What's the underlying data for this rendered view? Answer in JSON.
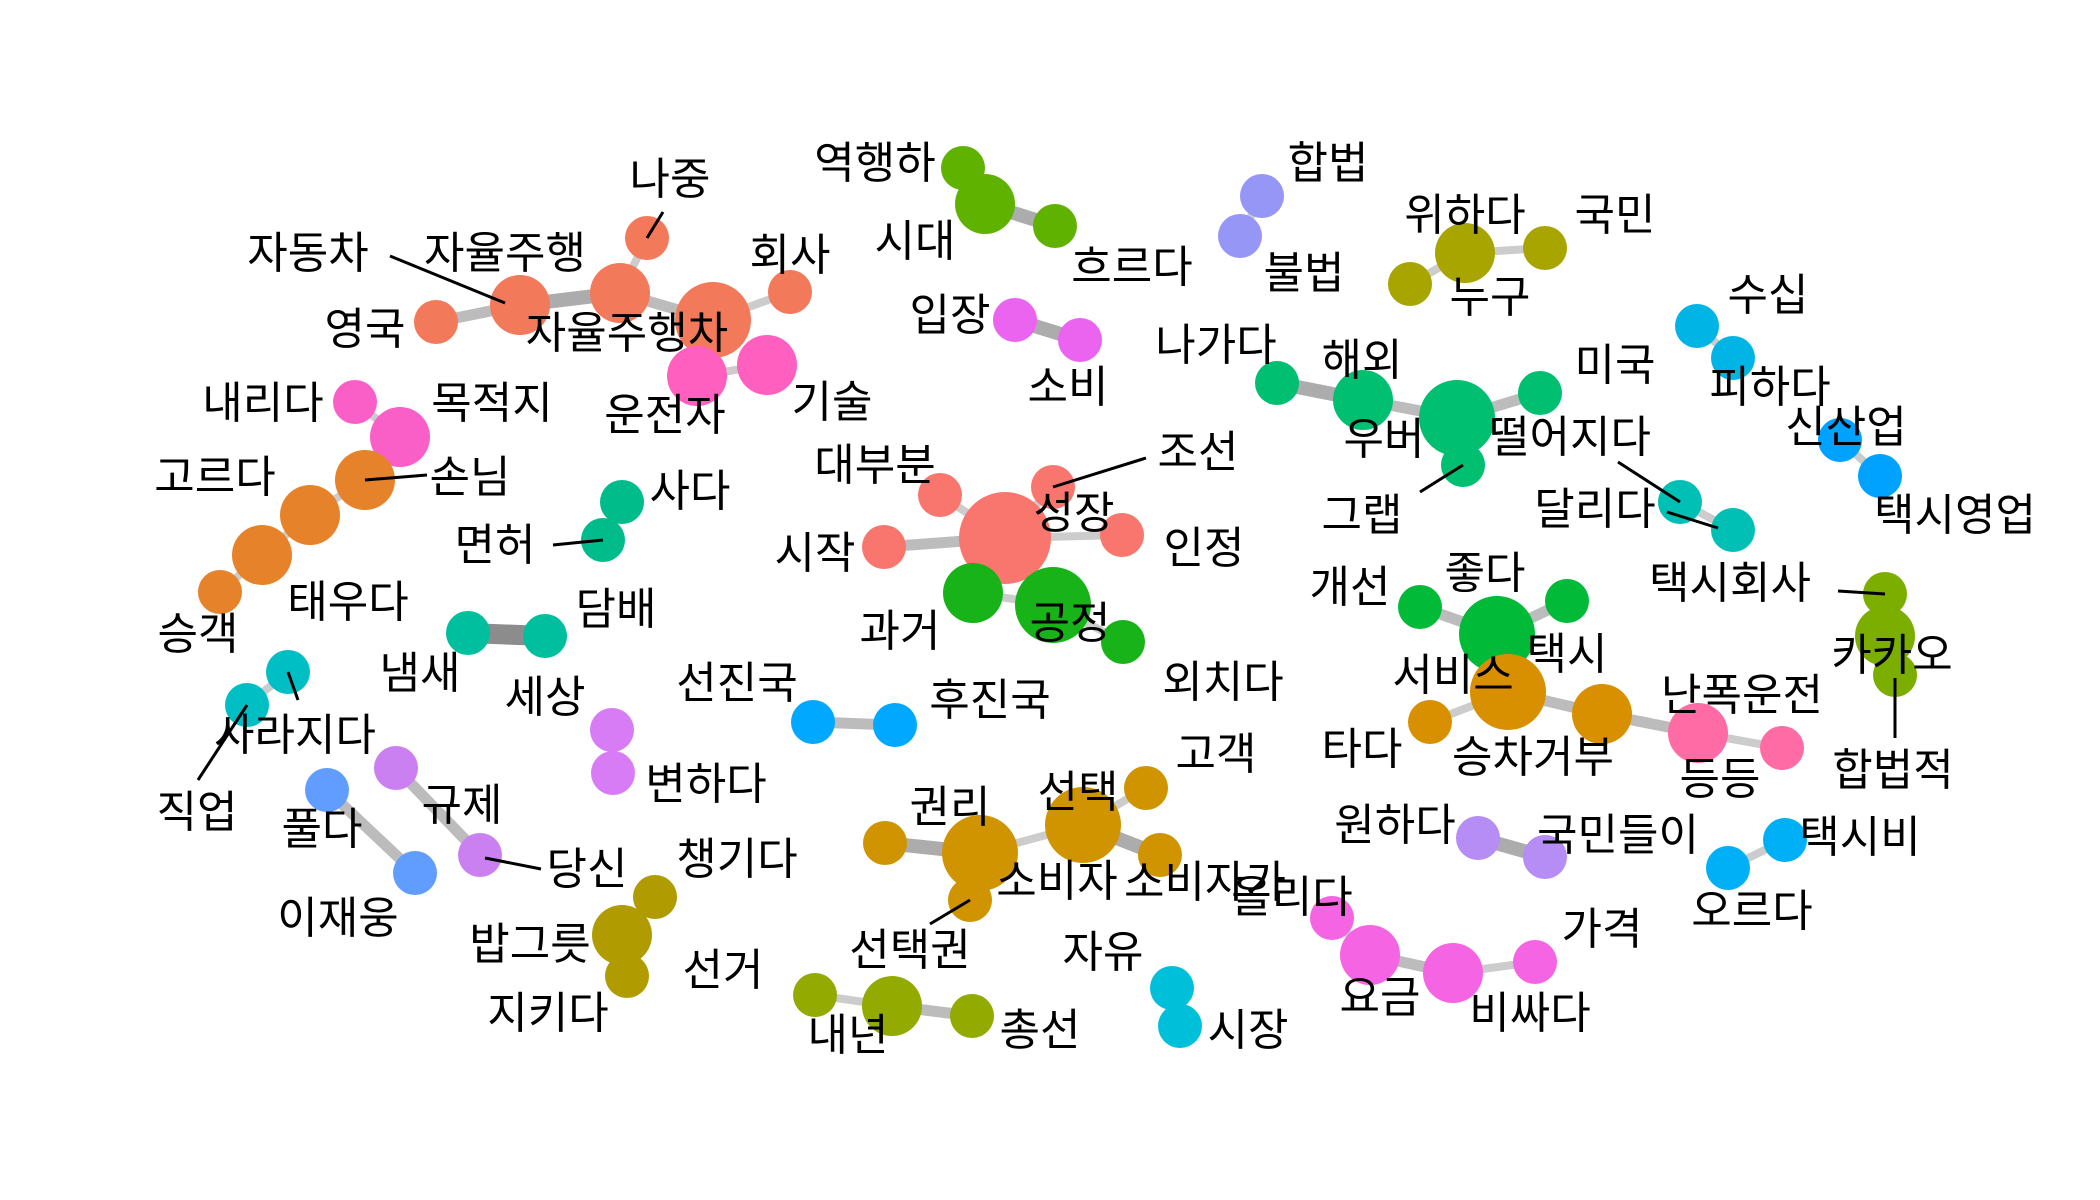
{
  "colors": {
    "edge": "#bdbdbd",
    "label": "#000000",
    "leader": "#000000",
    "background": "#ffffff"
  },
  "clusters": [
    {
      "id": "c_ai",
      "color": "#F2795A",
      "nodes": [
        "나중",
        "자율주행",
        "자율주행차",
        "회사",
        "자동차",
        "영국"
      ]
    },
    {
      "id": "c_yh",
      "color": "#5FB300",
      "nodes": [
        "역행하",
        "시대",
        "흐르다"
      ]
    },
    {
      "id": "c_law",
      "color": "#9696F7",
      "nodes": [
        "합법",
        "불법"
      ]
    },
    {
      "id": "c_nat",
      "color": "#A8A400",
      "nodes": [
        "위하다",
        "국민",
        "누구"
      ]
    },
    {
      "id": "c_wc",
      "color": "#FF5FBE",
      "nodes": [
        "운전자",
        "기술"
      ]
    },
    {
      "id": "c_ip",
      "color": "#EB64EF",
      "nodes": [
        "입장",
        "소비"
      ]
    },
    {
      "id": "c_sus",
      "color": "#00B4E6",
      "nodes": [
        "수십",
        "피하다"
      ]
    },
    {
      "id": "c_new",
      "color": "#00A2FF",
      "nodes": [
        "신산업",
        "택시영업"
      ]
    },
    {
      "id": "c_ub",
      "color": "#00BF70",
      "nodes": [
        "나가다",
        "해외",
        "우버",
        "미국",
        "그랩"
      ]
    },
    {
      "id": "c_dest",
      "color": "#FA5FC8",
      "nodes": [
        "내리다",
        "목적지"
      ]
    },
    {
      "id": "c_cust",
      "color": "#E6822A",
      "nodes": [
        "손님",
        "고르다",
        "태우다",
        "승객"
      ]
    },
    {
      "id": "c_lic",
      "color": "#00BC8A",
      "nodes": [
        "사다",
        "면허"
      ]
    },
    {
      "id": "c_grow",
      "color": "#F8766D",
      "nodes": [
        "대부분",
        "조선",
        "성장",
        "시작",
        "인정"
      ]
    },
    {
      "id": "c_fair",
      "color": "#18B318",
      "nodes": [
        "과거",
        "공정",
        "외치다"
      ]
    },
    {
      "id": "c_fall",
      "color": "#00BFB4",
      "nodes": [
        "떨어지다",
        "달리다"
      ]
    },
    {
      "id": "c_smoke",
      "color": "#00BF9E",
      "nodes": [
        "냄새",
        "담배"
      ]
    },
    {
      "id": "c_good",
      "color": "#00BA38",
      "nodes": [
        "개선",
        "좋다",
        "택시"
      ]
    },
    {
      "id": "c_kakao",
      "color": "#7CAE00",
      "nodes": [
        "택시회사",
        "카카오",
        "합법적"
      ]
    },
    {
      "id": "c_job",
      "color": "#00BFC4",
      "nodes": [
        "사라지다",
        "직업"
      ]
    },
    {
      "id": "c_world",
      "color": "#D77CF5",
      "nodes": [
        "세상",
        "변하다"
      ]
    },
    {
      "id": "c_dev",
      "color": "#00A9FF",
      "nodes": [
        "선진국",
        "후진국"
      ]
    },
    {
      "id": "c_svc",
      "color": "#D89000",
      "nodes": [
        "서비스",
        "승차거부",
        "타다"
      ]
    },
    {
      "id": "c_reck",
      "color": "#FF6BA4",
      "nodes": [
        "난폭운전",
        "등등"
      ]
    },
    {
      "id": "c_free",
      "color": "#CB80F2",
      "nodes": [
        "풀다",
        "규제"
      ]
    },
    {
      "id": "c_you",
      "color": "#619CFF",
      "nodes": [
        "당신",
        "이재웅"
      ]
    },
    {
      "id": "c_choice",
      "color": "#CF9400",
      "nodes": [
        "고객",
        "선택",
        "권리",
        "소비자",
        "소비자가",
        "선택권"
      ]
    },
    {
      "id": "c_pub",
      "color": "#B09B00",
      "nodes": [
        "챙기다",
        "밥그릇",
        "지키다"
      ]
    },
    {
      "id": "c_want",
      "color": "#B68CF5",
      "nodes": [
        "원하다",
        "국민들이"
      ]
    },
    {
      "id": "c_fare",
      "color": "#00B0F6",
      "nodes": [
        "택시비",
        "오르다"
      ]
    },
    {
      "id": "c_price",
      "color": "#F564E3",
      "nodes": [
        "올리다",
        "요금",
        "비싸다",
        "가격"
      ]
    },
    {
      "id": "c_mkt",
      "color": "#00C0D9",
      "nodes": [
        "자유",
        "시장"
      ]
    },
    {
      "id": "c_elec",
      "color": "#93AA00",
      "nodes": [
        "선거",
        "내년",
        "총선"
      ]
    }
  ],
  "nodes": [
    {
      "label": "나중",
      "size": 1
    },
    {
      "label": "자율주행",
      "size": 2
    },
    {
      "label": "자율주행차",
      "size": 3
    },
    {
      "label": "회사",
      "size": 1
    },
    {
      "label": "자동차",
      "size": 2
    },
    {
      "label": "영국",
      "size": 1
    },
    {
      "label": "역행하",
      "size": 1
    },
    {
      "label": "시대",
      "size": 2
    },
    {
      "label": "흐르다",
      "size": 1
    },
    {
      "label": "합법",
      "size": 1
    },
    {
      "label": "불법",
      "size": 1
    },
    {
      "label": "위하다",
      "size": 2
    },
    {
      "label": "국민",
      "size": 1
    },
    {
      "label": "누구",
      "size": 1
    },
    {
      "label": "운전자",
      "size": 2
    },
    {
      "label": "기술",
      "size": 2
    },
    {
      "label": "입장",
      "size": 1
    },
    {
      "label": "소비",
      "size": 1
    },
    {
      "label": "수십",
      "size": 1
    },
    {
      "label": "피하다",
      "size": 1
    },
    {
      "label": "신산업",
      "size": 1
    },
    {
      "label": "택시영업",
      "size": 1
    },
    {
      "label": "나가다",
      "size": 1
    },
    {
      "label": "해외",
      "size": 2
    },
    {
      "label": "우버",
      "size": 3
    },
    {
      "label": "미국",
      "size": 1
    },
    {
      "label": "그랩",
      "size": 1
    },
    {
      "label": "내리다",
      "size": 1
    },
    {
      "label": "목적지",
      "size": 2
    },
    {
      "label": "손님",
      "size": 2
    },
    {
      "label": "고르다",
      "size": 2
    },
    {
      "label": "태우다",
      "size": 2
    },
    {
      "label": "승객",
      "size": 1
    },
    {
      "label": "사다",
      "size": 1
    },
    {
      "label": "면허",
      "size": 1
    },
    {
      "label": "대부분",
      "size": 1
    },
    {
      "label": "조선",
      "size": 1
    },
    {
      "label": "성장",
      "size": 4
    },
    {
      "label": "시작",
      "size": 1
    },
    {
      "label": "인정",
      "size": 1
    },
    {
      "label": "과거",
      "size": 2
    },
    {
      "label": "공정",
      "size": 3
    },
    {
      "label": "외치다",
      "size": 1
    },
    {
      "label": "떨어지다",
      "size": 1
    },
    {
      "label": "달리다",
      "size": 1
    },
    {
      "label": "냄새",
      "size": 1
    },
    {
      "label": "담배",
      "size": 1
    },
    {
      "label": "개선",
      "size": 1
    },
    {
      "label": "좋다",
      "size": 3
    },
    {
      "label": "택시",
      "size": 1
    },
    {
      "label": "택시회사",
      "size": 1
    },
    {
      "label": "카카오",
      "size": 2
    },
    {
      "label": "합법적",
      "size": 1
    },
    {
      "label": "사라지다",
      "size": 1
    },
    {
      "label": "직업",
      "size": 1
    },
    {
      "label": "세상",
      "size": 1
    },
    {
      "label": "변하다",
      "size": 1
    },
    {
      "label": "선진국",
      "size": 1
    },
    {
      "label": "후진국",
      "size": 1
    },
    {
      "label": "서비스",
      "size": 3
    },
    {
      "label": "승차거부",
      "size": 2
    },
    {
      "label": "타다",
      "size": 1
    },
    {
      "label": "난폭운전",
      "size": 2
    },
    {
      "label": "등등",
      "size": 1
    },
    {
      "label": "풀다",
      "size": 1
    },
    {
      "label": "규제",
      "size": 1
    },
    {
      "label": "당신",
      "size": 1
    },
    {
      "label": "이재웅",
      "size": 1
    },
    {
      "label": "고객",
      "size": 1
    },
    {
      "label": "선택",
      "size": 3
    },
    {
      "label": "권리",
      "size": 1
    },
    {
      "label": "소비자",
      "size": 3
    },
    {
      "label": "소비자가",
      "size": 1
    },
    {
      "label": "선택권",
      "size": 1
    },
    {
      "label": "챙기다",
      "size": 1
    },
    {
      "label": "밥그릇",
      "size": 2
    },
    {
      "label": "지키다",
      "size": 1
    },
    {
      "label": "원하다",
      "size": 1
    },
    {
      "label": "국민들이",
      "size": 1
    },
    {
      "label": "택시비",
      "size": 1
    },
    {
      "label": "오르다",
      "size": 1
    },
    {
      "label": "올리다",
      "size": 1
    },
    {
      "label": "요금",
      "size": 2
    },
    {
      "label": "비싸다",
      "size": 2
    },
    {
      "label": "가격",
      "size": 1
    },
    {
      "label": "자유",
      "size": 1
    },
    {
      "label": "시장",
      "size": 1
    },
    {
      "label": "선거",
      "size": 1
    },
    {
      "label": "내년",
      "size": 2
    },
    {
      "label": "총선",
      "size": 1
    }
  ],
  "edges": [
    {
      "source": "나중",
      "target": "자율주행",
      "weight": 1
    },
    {
      "source": "자율주행",
      "target": "자율주행차",
      "weight": 2
    },
    {
      "source": "자율주행차",
      "target": "회사",
      "weight": 1
    },
    {
      "source": "자율주행",
      "target": "자동차",
      "weight": 3
    },
    {
      "source": "자동차",
      "target": "영국",
      "weight": 2
    },
    {
      "source": "역행하",
      "target": "시대",
      "weight": 2
    },
    {
      "source": "시대",
      "target": "흐르다",
      "weight": 3
    },
    {
      "source": "합법",
      "target": "불법",
      "weight": 1
    },
    {
      "source": "위하다",
      "target": "국민",
      "weight": 1
    },
    {
      "source": "위하다",
      "target": "누구",
      "weight": 1
    },
    {
      "source": "운전자",
      "target": "기술",
      "weight": 1
    },
    {
      "source": "입장",
      "target": "소비",
      "weight": 3
    },
    {
      "source": "수십",
      "target": "피하다",
      "weight": 1
    },
    {
      "source": "신산업",
      "target": "택시영업",
      "weight": 1
    },
    {
      "source": "나가다",
      "target": "해외",
      "weight": 3
    },
    {
      "source": "해외",
      "target": "우버",
      "weight": 2
    },
    {
      "source": "우버",
      "target": "미국",
      "weight": 2
    },
    {
      "source": "우버",
      "target": "그랩",
      "weight": 1
    },
    {
      "source": "내리다",
      "target": "목적지",
      "weight": 1
    },
    {
      "source": "손님",
      "target": "고르다",
      "weight": 1
    },
    {
      "source": "고르다",
      "target": "태우다",
      "weight": 1
    },
    {
      "source": "태우다",
      "target": "승객",
      "weight": 1
    },
    {
      "source": "사다",
      "target": "면허",
      "weight": 1
    },
    {
      "source": "대부분",
      "target": "성장",
      "weight": 1
    },
    {
      "source": "조선",
      "target": "성장",
      "weight": 1
    },
    {
      "source": "시작",
      "target": "성장",
      "weight": 2
    },
    {
      "source": "성장",
      "target": "인정",
      "weight": 1
    },
    {
      "source": "성장",
      "target": "과거",
      "weight": 2
    },
    {
      "source": "성장",
      "target": "공정",
      "weight": 2
    },
    {
      "source": "과거",
      "target": "공정",
      "weight": 1
    },
    {
      "source": "공정",
      "target": "외치다",
      "weight": 1
    },
    {
      "source": "떨어지다",
      "target": "달리다",
      "weight": 1
    },
    {
      "source": "냄새",
      "target": "담배",
      "weight": 5
    },
    {
      "source": "개선",
      "target": "좋다",
      "weight": 2
    },
    {
      "source": "좋다",
      "target": "택시",
      "weight": 2
    },
    {
      "source": "택시회사",
      "target": "카카오",
      "weight": 1
    },
    {
      "source": "카카오",
      "target": "합법적",
      "weight": 1
    },
    {
      "source": "사라지다",
      "target": "직업",
      "weight": 1
    },
    {
      "source": "세상",
      "target": "변하다",
      "weight": 1
    },
    {
      "source": "선진국",
      "target": "후진국",
      "weight": 2
    },
    {
      "source": "서비스",
      "target": "승차거부",
      "weight": 2
    },
    {
      "source": "서비스",
      "target": "타다",
      "weight": 1
    },
    {
      "source": "승차거부",
      "target": "난폭운전",
      "weight": 2
    },
    {
      "source": "난폭운전",
      "target": "등등",
      "weight": 1
    },
    {
      "source": "풀다",
      "target": "규제",
      "weight": 2
    },
    {
      "source": "당신",
      "target": "이재웅",
      "weight": 2
    },
    {
      "source": "고객",
      "target": "선택",
      "weight": 1
    },
    {
      "source": "선택",
      "target": "소비자",
      "weight": 1
    },
    {
      "source": "권리",
      "target": "소비자",
      "weight": 3
    },
    {
      "source": "선택",
      "target": "소비자가",
      "weight": 3
    },
    {
      "source": "소비자",
      "target": "선택권",
      "weight": 1
    },
    {
      "source": "챙기다",
      "target": "밥그릇",
      "weight": 1
    },
    {
      "source": "밥그릇",
      "target": "지키다",
      "weight": 1
    },
    {
      "source": "원하다",
      "target": "국민들이",
      "weight": 3
    },
    {
      "source": "택시비",
      "target": "오르다",
      "weight": 1
    },
    {
      "source": "올리다",
      "target": "요금",
      "weight": 1
    },
    {
      "source": "요금",
      "target": "비싸다",
      "weight": 2
    },
    {
      "source": "비싸다",
      "target": "가격",
      "weight": 1
    },
    {
      "source": "자유",
      "target": "시장",
      "weight": 1
    },
    {
      "source": "선거",
      "target": "내년",
      "weight": 1
    },
    {
      "source": "내년",
      "target": "총선",
      "weight": 2
    }
  ]
}
